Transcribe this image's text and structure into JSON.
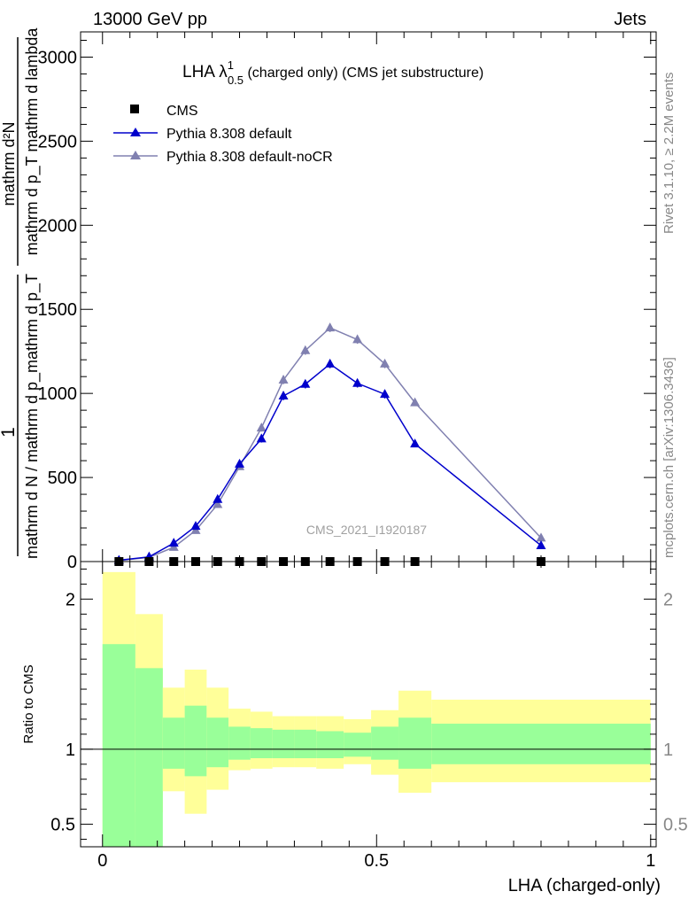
{
  "header": {
    "left": "13000 GeV pp",
    "right": "Jets"
  },
  "side_labels": {
    "rivet": "Rivet 3.1.10, ≥ 2.2M events",
    "mcplots": "mcplots.cern.ch [arXiv:1306.3436]"
  },
  "watermark": "CMS_2021_I1920187",
  "colors": {
    "cms": "#000000",
    "default": "#0000cc",
    "nocr": "#8080b0",
    "band_inner": "#99ff99",
    "band_outer": "#ffff99"
  },
  "chart_data": [
    {
      "type": "line",
      "title_main": "LHA λ",
      "title_sup": "1",
      "title_sub": "0.5",
      "title_rest": " (charged only) (CMS jet substructure)",
      "ylabel_frac_num": "1",
      "ylabel_denom": "mathrm d N / mathrm d p_mathrm d p_{T}",
      "ylabel_numer": "mathrm d²N",
      "ylabel_numer_rest": "mathrm d p_{T} mathrm d lambda",
      "ylabel_parts": {
        "frac_one": "1",
        "frac_denominator": "mathrm d N / mathrm d p_mathrm d p_T",
        "deriv_numerator": "mathrm d²N",
        "deriv_denominator": "mathrm d p_T mathrm d lambda"
      },
      "xlim": [
        -0.04,
        1.01
      ],
      "ylim": [
        0,
        3150
      ],
      "yticks": [
        0,
        500,
        1000,
        1500,
        2000,
        2500,
        3000
      ],
      "yticklabels": [
        "0",
        "500",
        "1000",
        "1500",
        "2000",
        "2500",
        "3000"
      ],
      "legend_position": "top-left",
      "legend": [
        "CMS",
        "Pythia 8.308 default",
        "Pythia 8.308 default-noCR"
      ],
      "x": [
        0.03,
        0.085,
        0.13,
        0.17,
        0.21,
        0.25,
        0.29,
        0.33,
        0.37,
        0.415,
        0.465,
        0.515,
        0.57,
        0.8
      ],
      "series": [
        {
          "name": "CMS",
          "marker": "square",
          "values": [
            0,
            0,
            0,
            0,
            0,
            0,
            0,
            0,
            0,
            0,
            0,
            0,
            0,
            0
          ]
        },
        {
          "name": "Pythia 8.308 default",
          "marker": "triangle",
          "values": [
            8,
            28,
            110,
            210,
            370,
            580,
            730,
            985,
            1055,
            1175,
            1060,
            995,
            700,
            95
          ],
          "errors": [
            4,
            6,
            12,
            15,
            18,
            20,
            22,
            25,
            25,
            25,
            25,
            25,
            20,
            8
          ]
        },
        {
          "name": "Pythia 8.308 default-noCR",
          "marker": "triangle",
          "values": [
            6,
            25,
            85,
            185,
            340,
            565,
            795,
            1080,
            1255,
            1390,
            1320,
            1175,
            945,
            140
          ],
          "errors": [
            4,
            6,
            12,
            15,
            18,
            20,
            22,
            25,
            25,
            25,
            25,
            25,
            20,
            8
          ]
        }
      ]
    },
    {
      "type": "area",
      "ylabel": "Ratio to CMS",
      "xlabel": "LHA (charged-only)",
      "xlim": [
        -0.04,
        1.01
      ],
      "ylim": [
        0.35,
        2.25
      ],
      "yticks": [
        0.5,
        1,
        2
      ],
      "yticklabels": [
        "0.5",
        "1",
        "2"
      ],
      "xticks": [
        0,
        0.5,
        1
      ],
      "xticklabels": [
        "0",
        "0.5",
        "1"
      ],
      "bins": [
        {
          "x0": 0.0,
          "x1": 0.06,
          "inner": [
            0.35,
            1.7
          ],
          "outer": [
            0.35,
            2.18
          ]
        },
        {
          "x0": 0.06,
          "x1": 0.11,
          "inner": [
            0.35,
            1.54
          ],
          "outer": [
            0.58,
            1.9
          ]
        },
        {
          "x0": 0.11,
          "x1": 0.15,
          "inner": [
            0.87,
            1.21
          ],
          "outer": [
            0.72,
            1.41
          ]
        },
        {
          "x0": 0.15,
          "x1": 0.19,
          "inner": [
            0.82,
            1.29
          ],
          "outer": [
            0.57,
            1.53
          ]
        },
        {
          "x0": 0.19,
          "x1": 0.23,
          "inner": [
            0.88,
            1.21
          ],
          "outer": [
            0.73,
            1.41
          ]
        },
        {
          "x0": 0.23,
          "x1": 0.27,
          "inner": [
            0.93,
            1.15
          ],
          "outer": [
            0.86,
            1.27
          ]
        },
        {
          "x0": 0.27,
          "x1": 0.31,
          "inner": [
            0.94,
            1.14
          ],
          "outer": [
            0.87,
            1.25
          ]
        },
        {
          "x0": 0.31,
          "x1": 0.35,
          "inner": [
            0.94,
            1.13
          ],
          "outer": [
            0.88,
            1.22
          ]
        },
        {
          "x0": 0.35,
          "x1": 0.39,
          "inner": [
            0.94,
            1.13
          ],
          "outer": [
            0.88,
            1.22
          ]
        },
        {
          "x0": 0.39,
          "x1": 0.44,
          "inner": [
            0.94,
            1.12
          ],
          "outer": [
            0.87,
            1.22
          ]
        },
        {
          "x0": 0.44,
          "x1": 0.49,
          "inner": [
            0.95,
            1.11
          ],
          "outer": [
            0.9,
            1.2
          ]
        },
        {
          "x0": 0.49,
          "x1": 0.54,
          "inner": [
            0.93,
            1.15
          ],
          "outer": [
            0.83,
            1.26
          ]
        },
        {
          "x0": 0.54,
          "x1": 0.6,
          "inner": [
            0.87,
            1.21
          ],
          "outer": [
            0.71,
            1.39
          ]
        },
        {
          "x0": 0.6,
          "x1": 1.0,
          "inner": [
            0.9,
            1.17
          ],
          "outer": [
            0.78,
            1.33
          ]
        }
      ]
    }
  ]
}
